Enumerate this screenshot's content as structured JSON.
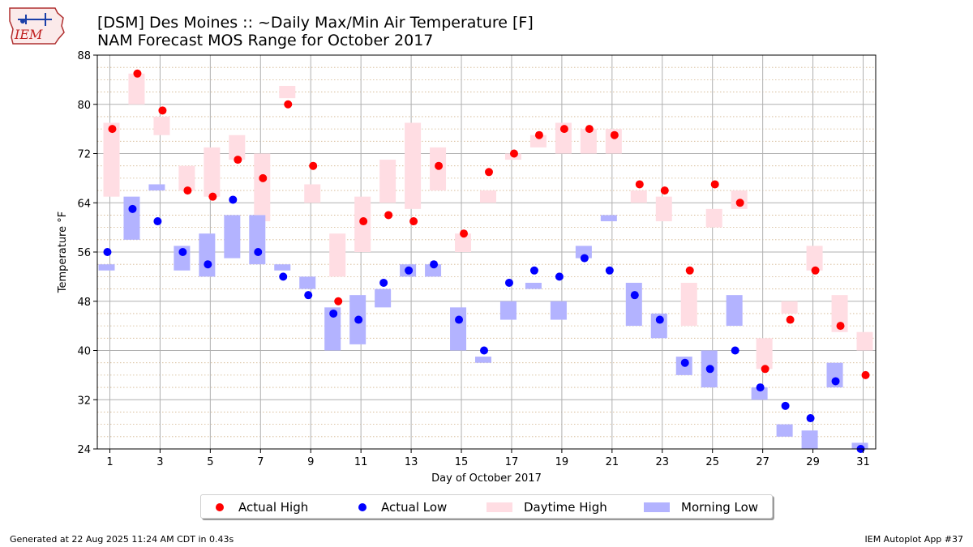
{
  "logo": {
    "text": "IEM"
  },
  "title": {
    "line1": "[DSM] Des Moines :: ~Daily Max/Min Air Temperature [F]",
    "line2": "NAM Forecast MOS Range for October 2017"
  },
  "footer": {
    "left": "Generated at 22 Aug 2025 11:24 AM CDT in 0.43s",
    "right": "IEM Autoplot App #37"
  },
  "legend": {
    "actual_high": "Actual High",
    "actual_low": "Actual Low",
    "daytime_high": "Daytime High",
    "morning_low": "Morning Low"
  },
  "colors": {
    "actual_high": "#ff0000",
    "actual_low": "#0000ff",
    "daytime_high": "#ffdde3",
    "morning_low": "#b3b3ff",
    "grid_major": "#b0b0b0",
    "grid_minor": "#d2b48c"
  },
  "chart_data": {
    "type": "scatter",
    "xlabel": "Day of October 2017",
    "ylabel": "Temperature °F",
    "xlim": [
      0.5,
      31.5
    ],
    "ylim": [
      24,
      88
    ],
    "xticks": [
      1,
      3,
      5,
      7,
      9,
      11,
      13,
      15,
      17,
      19,
      21,
      23,
      25,
      27,
      29,
      31
    ],
    "yticks": [
      24,
      32,
      40,
      48,
      56,
      64,
      72,
      80,
      88
    ],
    "grid": true,
    "legend_position": "bottom-center",
    "days": [
      1,
      2,
      3,
      4,
      5,
      6,
      7,
      8,
      9,
      10,
      11,
      12,
      13,
      14,
      15,
      16,
      17,
      18,
      19,
      20,
      21,
      22,
      23,
      24,
      25,
      26,
      27,
      28,
      29,
      30,
      31
    ],
    "series": [
      {
        "name": "Actual High",
        "values": [
          76,
          85,
          79,
          66,
          65,
          71,
          68,
          80,
          70,
          48,
          61,
          62,
          61,
          70,
          59,
          69,
          72,
          75,
          76,
          76,
          75,
          67,
          66,
          53,
          67,
          64,
          37,
          45,
          53,
          44,
          36
        ]
      },
      {
        "name": "Actual Low",
        "values": [
          56,
          63,
          61,
          56,
          54,
          64.5,
          56,
          52,
          49,
          46,
          45,
          51,
          53,
          54,
          45,
          40,
          51,
          53,
          52,
          55,
          53,
          49,
          45,
          38,
          37,
          40,
          34,
          31,
          29,
          35,
          24
        ]
      },
      {
        "name": "Daytime High",
        "ranges": [
          [
            65,
            77
          ],
          [
            80,
            85
          ],
          [
            75,
            78
          ],
          [
            66,
            70
          ],
          [
            65,
            73
          ],
          [
            71,
            75
          ],
          [
            61,
            72
          ],
          [
            81,
            83
          ],
          [
            64,
            67
          ],
          [
            52,
            59
          ],
          [
            56,
            65
          ],
          [
            64,
            71
          ],
          [
            63,
            77
          ],
          [
            66,
            73
          ],
          [
            56,
            59
          ],
          [
            64,
            66
          ],
          [
            71,
            72
          ],
          [
            73,
            75
          ],
          [
            72,
            77
          ],
          [
            72,
            76
          ],
          [
            72,
            76
          ],
          [
            64,
            66
          ],
          [
            61,
            65
          ],
          [
            44,
            51
          ],
          [
            60,
            63
          ],
          [
            63,
            66
          ],
          [
            37,
            42
          ],
          [
            46,
            48
          ],
          [
            53,
            57
          ],
          [
            43,
            49
          ],
          [
            40,
            43
          ]
        ]
      },
      {
        "name": "Morning Low",
        "ranges": [
          [
            53,
            54
          ],
          [
            58,
            65
          ],
          [
            66,
            67
          ],
          [
            53,
            57
          ],
          [
            52,
            59
          ],
          [
            55,
            62
          ],
          [
            54,
            62
          ],
          [
            53,
            54
          ],
          [
            50,
            52
          ],
          [
            40,
            47
          ],
          [
            41,
            49
          ],
          [
            47,
            50
          ],
          [
            52,
            54
          ],
          [
            52,
            54
          ],
          [
            40,
            47
          ],
          [
            38,
            39
          ],
          [
            45,
            48
          ],
          [
            50,
            51
          ],
          [
            45,
            48
          ],
          [
            55,
            57
          ],
          [
            61,
            62
          ],
          [
            44,
            51
          ],
          [
            42,
            46
          ],
          [
            36,
            39
          ],
          [
            34,
            40
          ],
          [
            44,
            49
          ],
          [
            32,
            34
          ],
          [
            26,
            28
          ],
          [
            24,
            27
          ],
          [
            34,
            38
          ],
          [
            24,
            25
          ]
        ]
      }
    ]
  }
}
